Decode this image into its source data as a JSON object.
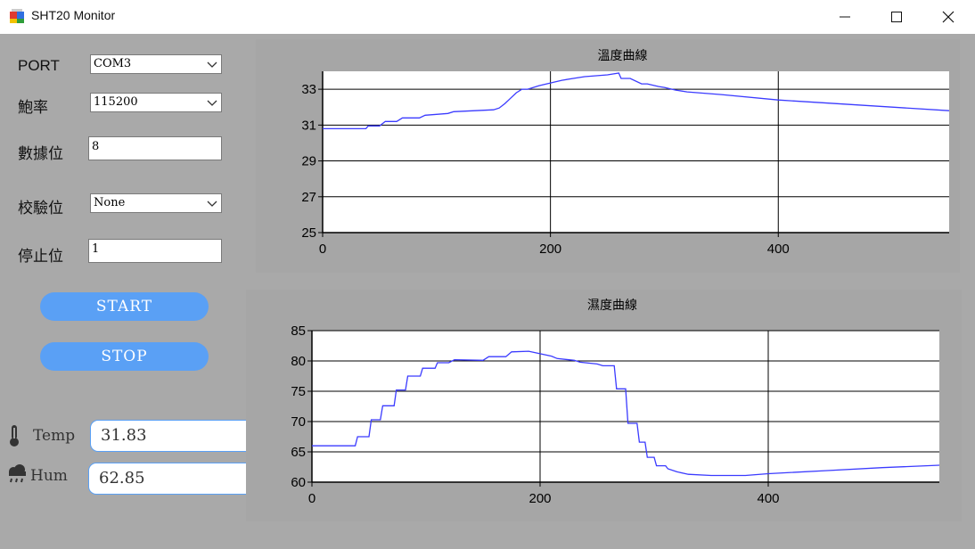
{
  "window": {
    "title": "SHT20 Monitor"
  },
  "settings": {
    "port_label": "PORT",
    "port_value": "COM3",
    "baud_label": "鮑率",
    "baud_value": "115200",
    "databits_label": "數據位",
    "databits_value": "8",
    "parity_label": "校驗位",
    "parity_value": "None",
    "stopbits_label": "停止位",
    "stopbits_value": "1"
  },
  "buttons": {
    "start": "START",
    "stop": "STOP"
  },
  "readouts": {
    "temp_label": "Temp",
    "temp_value": "31.83",
    "hum_label": "Hum",
    "hum_value": "62.85"
  },
  "colors": {
    "accent": "#5aa0f5",
    "background": "#a9a9a9",
    "series": "#3b3bff"
  },
  "chart_data": [
    {
      "type": "line",
      "title": "溫度曲線",
      "xlim": [
        0,
        550
      ],
      "ylim": [
        25,
        34
      ],
      "xticks": [
        0,
        200,
        400
      ],
      "yticks": [
        25,
        27,
        29,
        31,
        33
      ],
      "grid": true,
      "series": [
        {
          "x": [
            0,
            38,
            40,
            50,
            55,
            65,
            70,
            85,
            90,
            110,
            115,
            150,
            155,
            160,
            165,
            170,
            175,
            180,
            185,
            190,
            200,
            210,
            220,
            230,
            240,
            250,
            260,
            262,
            270,
            280,
            285,
            295,
            300,
            310,
            320,
            350,
            400,
            450,
            500,
            550
          ],
          "y": [
            30.8,
            30.8,
            30.95,
            30.95,
            31.2,
            31.2,
            31.4,
            31.4,
            31.55,
            31.65,
            31.75,
            31.85,
            31.95,
            32.2,
            32.5,
            32.8,
            33.0,
            33.0,
            33.1,
            33.2,
            33.35,
            33.5,
            33.6,
            33.7,
            33.75,
            33.8,
            33.9,
            33.6,
            33.6,
            33.3,
            33.3,
            33.15,
            33.1,
            32.95,
            32.85,
            32.7,
            32.4,
            32.2,
            32.0,
            31.8
          ]
        }
      ]
    },
    {
      "type": "line",
      "title": "濕度曲線",
      "xlim": [
        0,
        550
      ],
      "ylim": [
        60,
        85
      ],
      "xticks": [
        0,
        200,
        400
      ],
      "yticks": [
        60,
        65,
        70,
        75,
        80,
        85
      ],
      "grid": true,
      "series": [
        {
          "x": [
            0,
            38,
            40,
            50,
            52,
            60,
            62,
            72,
            74,
            82,
            84,
            95,
            97,
            108,
            110,
            120,
            125,
            150,
            155,
            170,
            175,
            190,
            195,
            210,
            215,
            230,
            235,
            250,
            255,
            265,
            267,
            275,
            277,
            285,
            287,
            292,
            294,
            300,
            302,
            310,
            312,
            320,
            330,
            350,
            380,
            400,
            450,
            500,
            550
          ],
          "y": [
            66,
            66,
            67.5,
            67.5,
            70.3,
            70.3,
            72.6,
            72.6,
            75.2,
            75.2,
            77.5,
            77.5,
            78.8,
            78.8,
            79.7,
            79.7,
            80.2,
            80.1,
            80.7,
            80.7,
            81.5,
            81.6,
            81.4,
            80.8,
            80.4,
            80.1,
            79.8,
            79.5,
            79.2,
            79.2,
            75.4,
            75.4,
            69.7,
            69.7,
            66.6,
            66.6,
            64.1,
            64.1,
            62.7,
            62.7,
            62.2,
            61.7,
            61.3,
            61.1,
            61.1,
            61.4,
            61.9,
            62.4,
            62.8
          ]
        }
      ]
    }
  ]
}
